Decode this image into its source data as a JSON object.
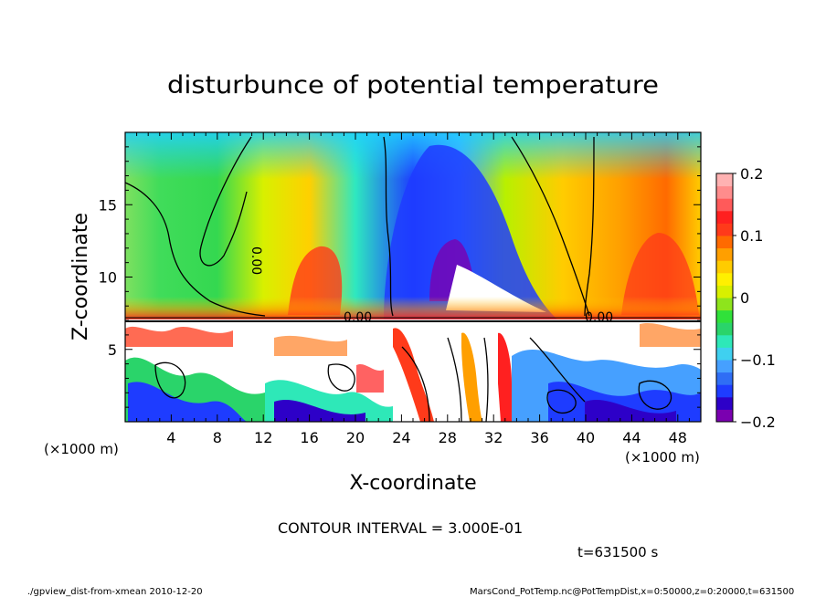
{
  "chart_data": {
    "type": "heatmap",
    "title": "disturbunce of potential temperature",
    "xlabel": "X-coordinate",
    "ylabel": "Z-coordinate",
    "x_unit_label": "(×1000 m)",
    "x_unit_label_right": "(×1000 m)",
    "xlim": [
      0,
      50
    ],
    "ylim": [
      0,
      20
    ],
    "x_ticks": [
      4,
      8,
      12,
      16,
      20,
      24,
      28,
      32,
      36,
      40,
      44,
      48
    ],
    "y_ticks": [
      5,
      10,
      15
    ],
    "colorbar": {
      "range": [
        -0.2,
        0.2
      ],
      "tick_labels": [
        "0.2",
        "0.1",
        "0",
        "−0.1",
        "−0.2"
      ],
      "tick_values": [
        0.2,
        0.1,
        0,
        -0.1,
        -0.2
      ],
      "colors": [
        "#7a00b0",
        "#2d00c8",
        "#1e3cff",
        "#2f6ef5",
        "#46a0ff",
        "#3fd0f0",
        "#2ee8b8",
        "#2ad46a",
        "#30e13a",
        "#8ee41c",
        "#d8f000",
        "#fff000",
        "#ffcc00",
        "#ff9f00",
        "#ff6a00",
        "#ff3a1a",
        "#ff2020",
        "#ff5a5a",
        "#ff8c8c",
        "#ffb2b2"
      ]
    },
    "contour_label": "0.00",
    "contour_interval_text": "CONTOUR INTERVAL = 3.000E-01",
    "time_text": "t=631500 s"
  },
  "footer": {
    "left": "./gpview_dist-from-xmean  2010-12-20",
    "right": "MarsCond_PotTemp.nc@PotTempDist,x=0:50000,z=0:20000,t=631500"
  }
}
